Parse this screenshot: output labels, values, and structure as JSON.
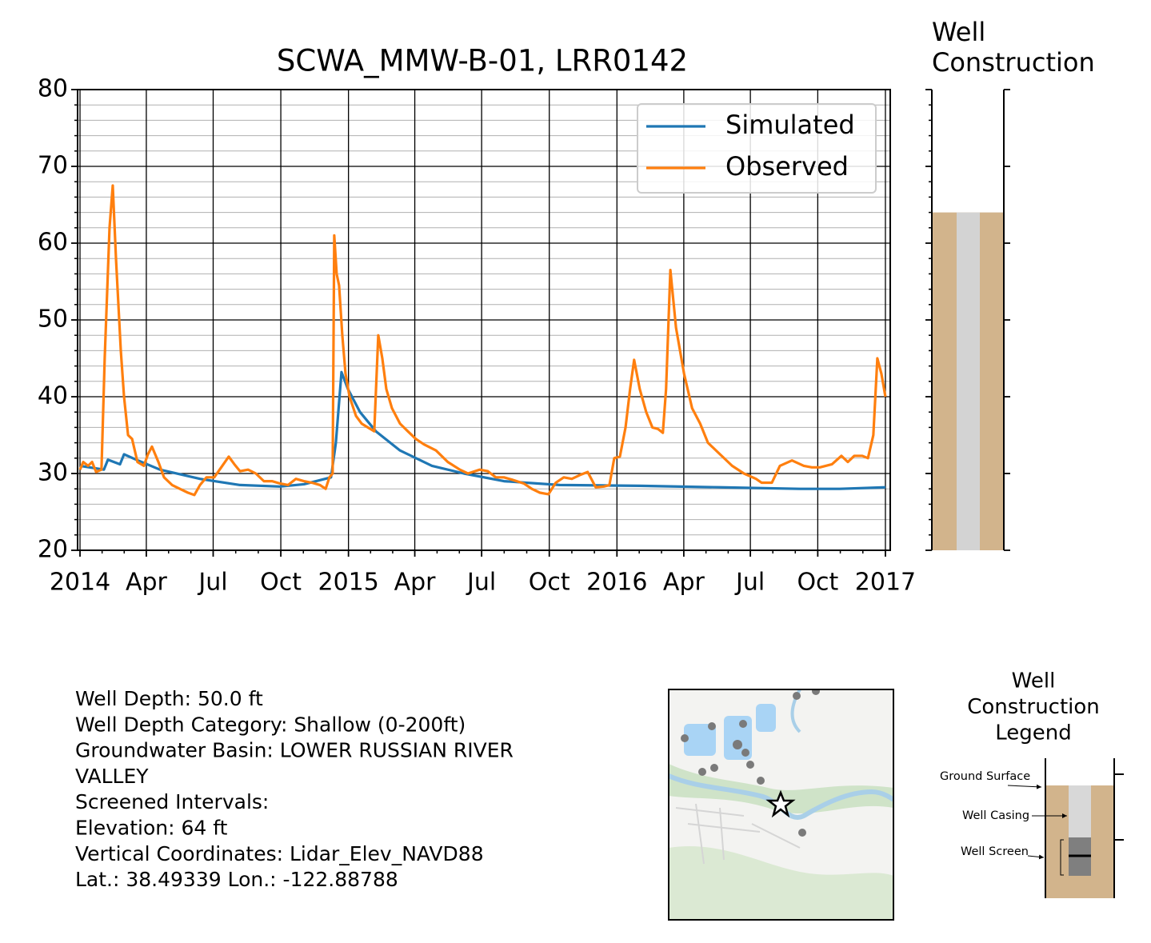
{
  "chart_data": [
    {
      "type": "line",
      "title": "SCWA_MMW-B-01, LRR0142",
      "series": [
        {
          "name": "Simulated",
          "color": "#1f77b4",
          "x": [
            2014.0,
            2014.089,
            2014.104,
            2014.149,
            2014.164,
            2014.209,
            2014.298,
            2014.447,
            2014.596,
            2014.745,
            2014.834,
            2014.935,
            2014.953,
            2014.974,
            2014.998,
            2015.043,
            2015.102,
            2015.192,
            2015.311,
            2015.43,
            2015.579,
            2015.787,
            2016.085,
            2016.383,
            2016.681,
            2016.83,
            2017.0
          ],
          "values": [
            31.0,
            30.5,
            31.8,
            31.2,
            32.5,
            31.8,
            30.5,
            29.3,
            28.5,
            28.3,
            28.6,
            29.5,
            34,
            43.2,
            41,
            38,
            35.5,
            33,
            31,
            30,
            29,
            28.5,
            28.4,
            28.2,
            28,
            28,
            28.2
          ]
        },
        {
          "name": "Observed",
          "color": "#ff7f0e",
          "x": [
            2014.0,
            2014.012,
            2014.03,
            2014.045,
            2014.06,
            2014.08,
            2014.092,
            2014.11,
            2014.122,
            2014.134,
            2014.152,
            2014.164,
            2014.179,
            2014.194,
            2014.214,
            2014.238,
            2014.253,
            2014.268,
            2014.292,
            2014.313,
            2014.343,
            2014.372,
            2014.402,
            2014.426,
            2014.447,
            2014.471,
            2014.5,
            2014.53,
            2014.554,
            2014.575,
            2014.596,
            2014.626,
            2014.655,
            2014.685,
            2014.715,
            2014.745,
            2014.775,
            2014.804,
            2014.834,
            2014.864,
            2014.894,
            2014.915,
            2014.929,
            2014.941,
            2014.947,
            2014.956,
            2014.965,
            2014.977,
            2014.989,
            2015.004,
            2015.028,
            2015.049,
            2015.072,
            2015.096,
            2015.111,
            2015.126,
            2015.141,
            2015.162,
            2015.192,
            2015.221,
            2015.251,
            2015.281,
            2015.326,
            2015.37,
            2015.415,
            2015.445,
            2015.489,
            2015.519,
            2015.549,
            2015.579,
            2015.609,
            2015.653,
            2015.683,
            2015.713,
            2015.745,
            2015.772,
            2015.802,
            2015.832,
            2015.862,
            2015.891,
            2015.921,
            2015.951,
            2015.972,
            2015.99,
            2016.011,
            2016.032,
            2016.049,
            2016.064,
            2016.085,
            2016.109,
            2016.132,
            2016.153,
            2016.171,
            2016.183,
            2016.199,
            2016.22,
            2016.25,
            2016.28,
            2016.31,
            2016.339,
            2016.384,
            2016.429,
            2016.473,
            2016.518,
            2016.539,
            2016.577,
            2016.607,
            2016.652,
            2016.696,
            2016.726,
            2016.756,
            2016.801,
            2016.836,
            2016.86,
            2016.884,
            2016.914,
            2016.935,
            2016.955,
            2016.97,
            2016.985,
            2017.0
          ],
          "values": [
            30.5,
            31.5,
            31.0,
            31.5,
            30.2,
            30.5,
            45,
            62,
            67.5,
            58,
            46,
            40,
            35,
            34.5,
            31.5,
            31,
            32.5,
            33.5,
            31.5,
            29.5,
            28.5,
            28,
            27.5,
            27.2,
            28.5,
            29.5,
            29.5,
            31,
            32.2,
            31.2,
            30.3,
            30.5,
            30,
            29,
            29,
            28.7,
            28.5,
            29.3,
            29,
            28.8,
            28.5,
            28,
            29.5,
            30,
            61,
            56,
            54.5,
            48,
            43,
            40,
            37.5,
            36.5,
            36,
            35.5,
            48,
            45,
            41,
            38.5,
            36.5,
            35.5,
            34.5,
            33.8,
            33,
            31.5,
            30.5,
            30,
            30.5,
            30.3,
            29.5,
            29.5,
            29.2,
            28.7,
            28,
            27.5,
            27.3,
            28.8,
            29.5,
            29.3,
            29.8,
            30.2,
            28.2,
            28.3,
            28.5,
            32,
            32.2,
            36,
            41,
            44.8,
            41,
            38,
            36,
            35.8,
            35.3,
            41,
            56.5,
            49,
            43,
            38.5,
            36.5,
            34,
            32.5,
            31,
            30,
            29.3,
            28.8,
            28.8,
            31,
            31.7,
            31,
            30.8,
            30.8,
            31.2,
            32.3,
            31.5,
            32.3,
            32.3,
            32,
            35,
            45,
            43,
            40
          ]
        }
      ],
      "xlim": [
        2013.991,
        2017.018
      ],
      "xticks": [
        {
          "value": 2014,
          "label": "2014"
        },
        {
          "value": 2014.247,
          "label": "Apr"
        },
        {
          "value": 2014.496,
          "label": "Jul"
        },
        {
          "value": 2014.748,
          "label": "Oct"
        },
        {
          "value": 2015,
          "label": "2015"
        },
        {
          "value": 2015.247,
          "label": "Apr"
        },
        {
          "value": 2015.496,
          "label": "Jul"
        },
        {
          "value": 2015.748,
          "label": "Oct"
        },
        {
          "value": 2016,
          "label": "2016"
        },
        {
          "value": 2016.249,
          "label": "Apr"
        },
        {
          "value": 2016.497,
          "label": "Jul"
        },
        {
          "value": 2016.748,
          "label": "Oct"
        },
        {
          "value": 2017,
          "label": "2017"
        }
      ],
      "ylim": [
        20,
        80
      ],
      "yticks": [
        20,
        30,
        40,
        50,
        60,
        70,
        80
      ],
      "grid": true,
      "legend": "upper right"
    },
    {
      "type": "well",
      "title": [
        "Well",
        "Construction"
      ],
      "ylim": [
        20,
        80
      ],
      "yticks": [
        20,
        30,
        40,
        50,
        60,
        70,
        80
      ],
      "ground_surface": 64,
      "soil_color": "#d2b48c",
      "casing_color": "#d3d3d3"
    }
  ],
  "info": [
    "Well Depth: 50.0 ft",
    "Well Depth Category: Shallow (0-200ft)",
    "Groundwater Basin: LOWER RUSSIAN RIVER",
    "VALLEY",
    "Screened Intervals:",
    "Elevation: 64 ft",
    "Vertical Coordinates: Lidar_Elev_NAVD88",
    "Lat.: 38.49339 Lon.: -122.88788"
  ],
  "legend_diagram": {
    "title": [
      "Well",
      "Construction",
      "Legend"
    ],
    "labels": [
      "Ground Surface",
      "Well Casing",
      "Well Screen"
    ]
  }
}
